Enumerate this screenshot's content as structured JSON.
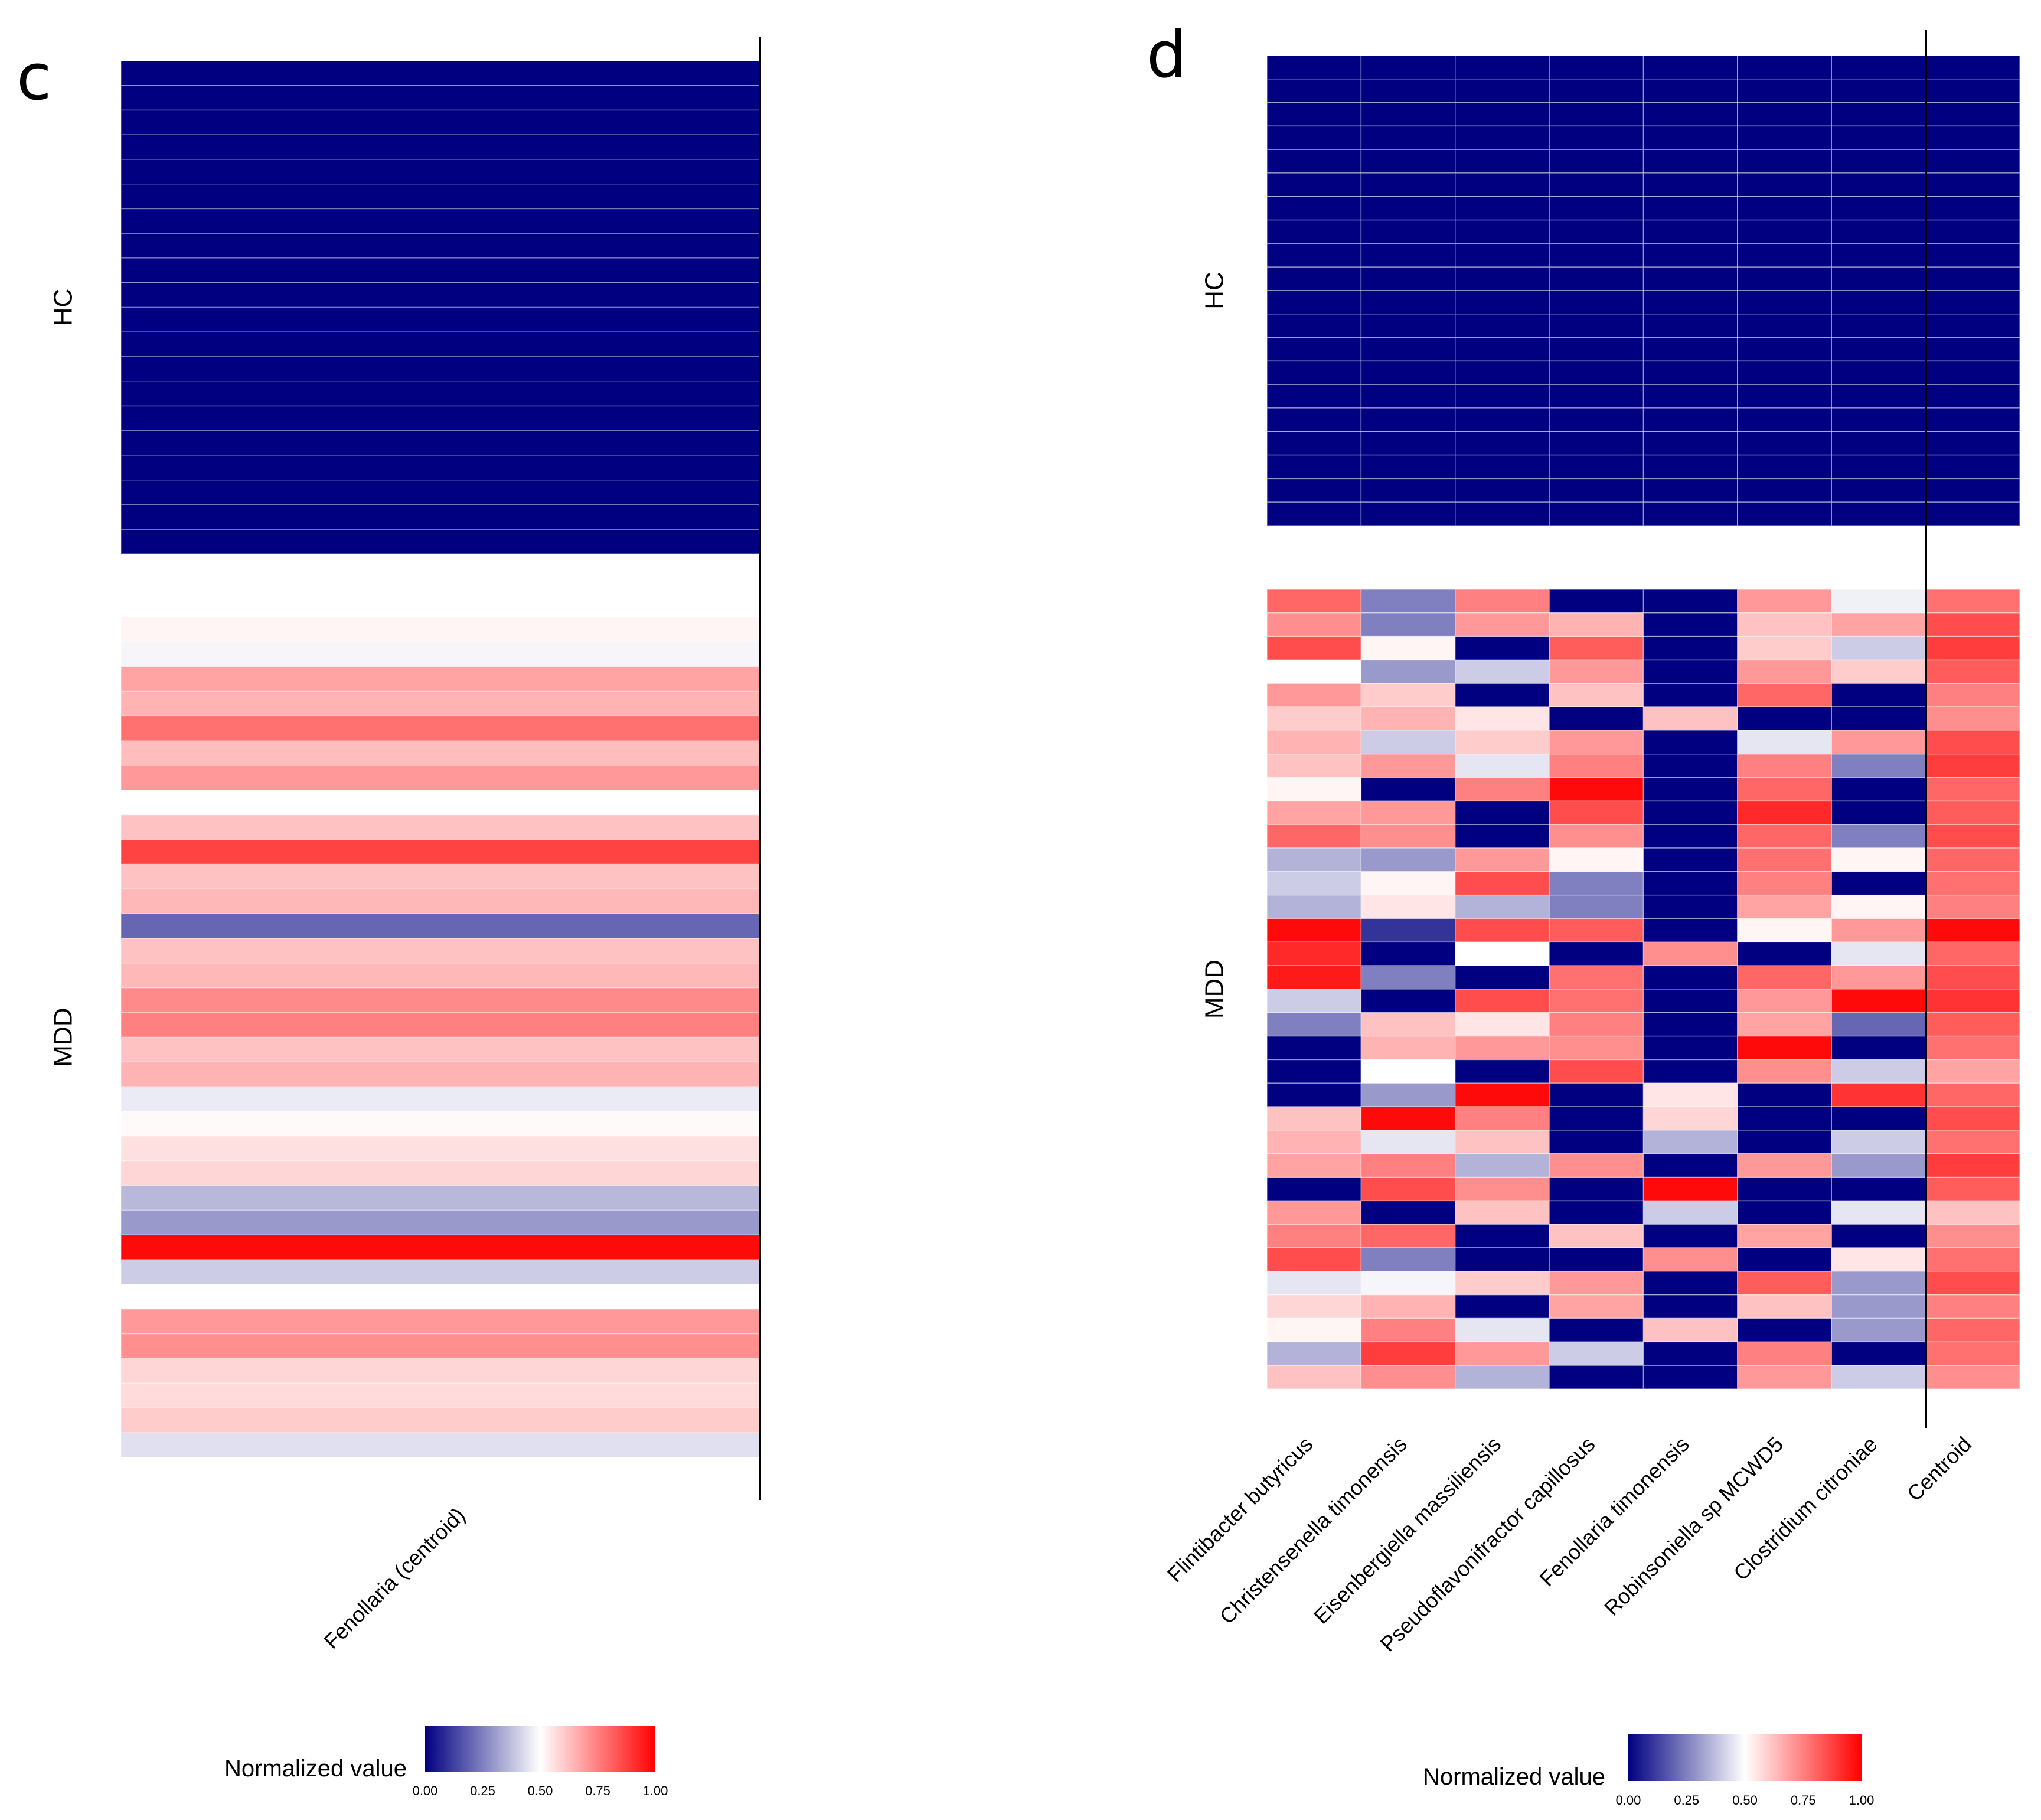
{
  "palette": {
    "low": "#000080",
    "mid": "#ffffff",
    "high": "#ff0000"
  },
  "chart_data": [
    {
      "type": "heatmap",
      "panel": "c",
      "title": "c",
      "columns": [
        "Fenollaria (centroid)"
      ],
      "groups": [
        {
          "label": "HC",
          "rows": 20,
          "values": [
            [
              0
            ],
            [
              0
            ],
            [
              0
            ],
            [
              0
            ],
            [
              0
            ],
            [
              0
            ],
            [
              0
            ],
            [
              0
            ],
            [
              0
            ],
            [
              0
            ],
            [
              0
            ],
            [
              0
            ],
            [
              0
            ],
            [
              0
            ],
            [
              0
            ],
            [
              0
            ],
            [
              0
            ],
            [
              0
            ],
            [
              0
            ],
            [
              0
            ]
          ]
        },
        {
          "label": "MDD",
          "rows": 34,
          "values": [
            [
              0.52
            ],
            [
              0.48
            ],
            [
              0.68
            ],
            [
              0.65
            ],
            [
              0.78
            ],
            [
              0.63
            ],
            [
              0.7
            ],
            [
              0.5
            ],
            [
              0.62
            ],
            [
              0.87
            ],
            [
              0.62
            ],
            [
              0.64
            ],
            [
              0.2
            ],
            [
              0.62
            ],
            [
              0.64
            ],
            [
              0.73
            ],
            [
              0.75
            ],
            [
              0.62
            ],
            [
              0.65
            ],
            [
              0.46
            ],
            [
              0.51
            ],
            [
              0.56
            ],
            [
              0.58
            ],
            [
              0.36
            ],
            [
              0.3
            ],
            [
              0.98
            ],
            [
              0.4
            ],
            [
              0.5
            ],
            [
              0.7
            ],
            [
              0.72
            ],
            [
              0.58
            ],
            [
              0.57
            ],
            [
              0.6
            ],
            [
              0.44
            ]
          ]
        }
      ],
      "legend": {
        "title": "Normalized value",
        "ticks": [
          "0.00",
          "0.25",
          "0.50",
          "0.75",
          "1.00"
        ],
        "range": [
          0,
          1
        ]
      }
    },
    {
      "type": "heatmap",
      "panel": "d",
      "title": "d",
      "columns": [
        "Flintibacter butyricus",
        "Christensenella timonensis",
        "Eisenbergiella massiliensis",
        "Pseudoflavonifractor capillosus",
        "Fenollaria timonensis",
        "Robinsoniella sp MCWD5",
        "Clostridium citroniae",
        "Centroid"
      ],
      "groups": [
        {
          "label": "HC",
          "rows": 20,
          "values": [
            [
              0,
              0,
              0,
              0,
              0,
              0,
              0,
              0
            ],
            [
              0,
              0,
              0,
              0,
              0,
              0,
              0,
              0
            ],
            [
              0,
              0,
              0,
              0,
              0,
              0,
              0,
              0
            ],
            [
              0,
              0,
              0,
              0,
              0,
              0,
              0,
              0
            ],
            [
              0,
              0,
              0,
              0,
              0,
              0,
              0,
              0
            ],
            [
              0,
              0,
              0,
              0,
              0,
              0,
              0,
              0
            ],
            [
              0,
              0,
              0,
              0,
              0,
              0,
              0,
              0
            ],
            [
              0,
              0,
              0,
              0,
              0,
              0,
              0,
              0
            ],
            [
              0,
              0,
              0,
              0,
              0,
              0,
              0,
              0
            ],
            [
              0,
              0,
              0,
              0,
              0,
              0,
              0,
              0
            ],
            [
              0,
              0,
              0,
              0,
              0,
              0,
              0,
              0
            ],
            [
              0,
              0,
              0,
              0,
              0,
              0,
              0,
              0
            ],
            [
              0,
              0,
              0,
              0,
              0,
              0,
              0,
              0
            ],
            [
              0,
              0,
              0,
              0,
              0,
              0,
              0,
              0
            ],
            [
              0,
              0,
              0,
              0,
              0,
              0,
              0,
              0
            ],
            [
              0,
              0,
              0,
              0,
              0,
              0,
              0,
              0
            ],
            [
              0,
              0,
              0,
              0,
              0,
              0,
              0,
              0
            ],
            [
              0,
              0,
              0,
              0,
              0,
              0,
              0,
              0
            ],
            [
              0,
              0,
              0,
              0,
              0,
              0,
              0,
              0
            ],
            [
              0,
              0,
              0,
              0,
              0,
              0,
              0,
              0
            ]
          ]
        },
        {
          "label": "MDD",
          "rows": 34,
          "values": [
            [
              0.8,
              0.25,
              0.75,
              0.0,
              0.0,
              0.7,
              0.47,
              0.78
            ],
            [
              0.72,
              0.25,
              0.7,
              0.65,
              0.0,
              0.62,
              0.68,
              0.85
            ],
            [
              0.85,
              0.52,
              0.0,
              0.82,
              0.0,
              0.6,
              0.4,
              0.88
            ],
            [
              0.5,
              0.3,
              0.4,
              0.7,
              0.0,
              0.7,
              0.6,
              0.82
            ],
            [
              0.7,
              0.6,
              0.0,
              0.62,
              0.0,
              0.8,
              0.0,
              0.75
            ],
            [
              0.6,
              0.65,
              0.55,
              0.0,
              0.62,
              0.0,
              0.0,
              0.72
            ],
            [
              0.65,
              0.4,
              0.6,
              0.7,
              0.0,
              0.45,
              0.7,
              0.85
            ],
            [
              0.62,
              0.7,
              0.45,
              0.75,
              0.0,
              0.75,
              0.25,
              0.88
            ],
            [
              0.52,
              0.0,
              0.75,
              0.98,
              0.0,
              0.8,
              0.0,
              0.8
            ],
            [
              0.68,
              0.7,
              0.0,
              0.85,
              0.0,
              0.92,
              0.0,
              0.82
            ],
            [
              0.8,
              0.72,
              0.0,
              0.72,
              0.0,
              0.8,
              0.25,
              0.85
            ],
            [
              0.35,
              0.3,
              0.7,
              0.52,
              0.0,
              0.78,
              0.52,
              0.8
            ],
            [
              0.4,
              0.52,
              0.85,
              0.25,
              0.0,
              0.75,
              0.0,
              0.78
            ],
            [
              0.35,
              0.55,
              0.35,
              0.25,
              0.0,
              0.68,
              0.52,
              0.75
            ],
            [
              0.98,
              0.1,
              0.85,
              0.82,
              0.0,
              0.52,
              0.7,
              0.98
            ],
            [
              0.92,
              0.0,
              0.5,
              0.0,
              0.72,
              0.0,
              0.45,
              0.8
            ],
            [
              0.95,
              0.25,
              0.0,
              0.78,
              0.0,
              0.8,
              0.7,
              0.85
            ],
            [
              0.4,
              0.0,
              0.85,
              0.78,
              0.0,
              0.7,
              0.98,
              0.9
            ],
            [
              0.25,
              0.62,
              0.55,
              0.75,
              0.0,
              0.68,
              0.2,
              0.82
            ],
            [
              0.0,
              0.65,
              0.7,
              0.72,
              0.0,
              0.98,
              0.0,
              0.78
            ],
            [
              0.0,
              0.5,
              0.0,
              0.85,
              0.0,
              0.72,
              0.4,
              0.68
            ],
            [
              0.0,
              0.3,
              0.98,
              0.0,
              0.55,
              0.0,
              0.9,
              0.8
            ],
            [
              0.62,
              0.98,
              0.75,
              0.0,
              0.58,
              0.0,
              0.0,
              0.85
            ],
            [
              0.65,
              0.45,
              0.62,
              0.0,
              0.35,
              0.0,
              0.4,
              0.78
            ],
            [
              0.68,
              0.75,
              0.35,
              0.72,
              0.0,
              0.7,
              0.3,
              0.88
            ],
            [
              0.0,
              0.85,
              0.72,
              0.0,
              0.98,
              0.0,
              0.0,
              0.82
            ],
            [
              0.7,
              0.0,
              0.62,
              0.0,
              0.4,
              0.0,
              0.45,
              0.62
            ],
            [
              0.75,
              0.8,
              0.0,
              0.62,
              0.0,
              0.68,
              0.0,
              0.72
            ],
            [
              0.85,
              0.25,
              0.0,
              0.0,
              0.72,
              0.0,
              0.55,
              0.78
            ],
            [
              0.45,
              0.48,
              0.6,
              0.7,
              0.0,
              0.82,
              0.3,
              0.85
            ],
            [
              0.58,
              0.65,
              0.0,
              0.68,
              0.0,
              0.62,
              0.3,
              0.75
            ],
            [
              0.52,
              0.75,
              0.45,
              0.0,
              0.62,
              0.0,
              0.3,
              0.8
            ],
            [
              0.35,
              0.88,
              0.7,
              0.4,
              0.0,
              0.75,
              0.0,
              0.78
            ],
            [
              0.62,
              0.72,
              0.35,
              0.0,
              0.0,
              0.7,
              0.4,
              0.72
            ]
          ]
        }
      ],
      "legend": {
        "title": "Normalized value",
        "ticks": [
          "0.00",
          "0.25",
          "0.50",
          "0.75",
          "1.00"
        ],
        "range": [
          0,
          1
        ]
      }
    }
  ]
}
